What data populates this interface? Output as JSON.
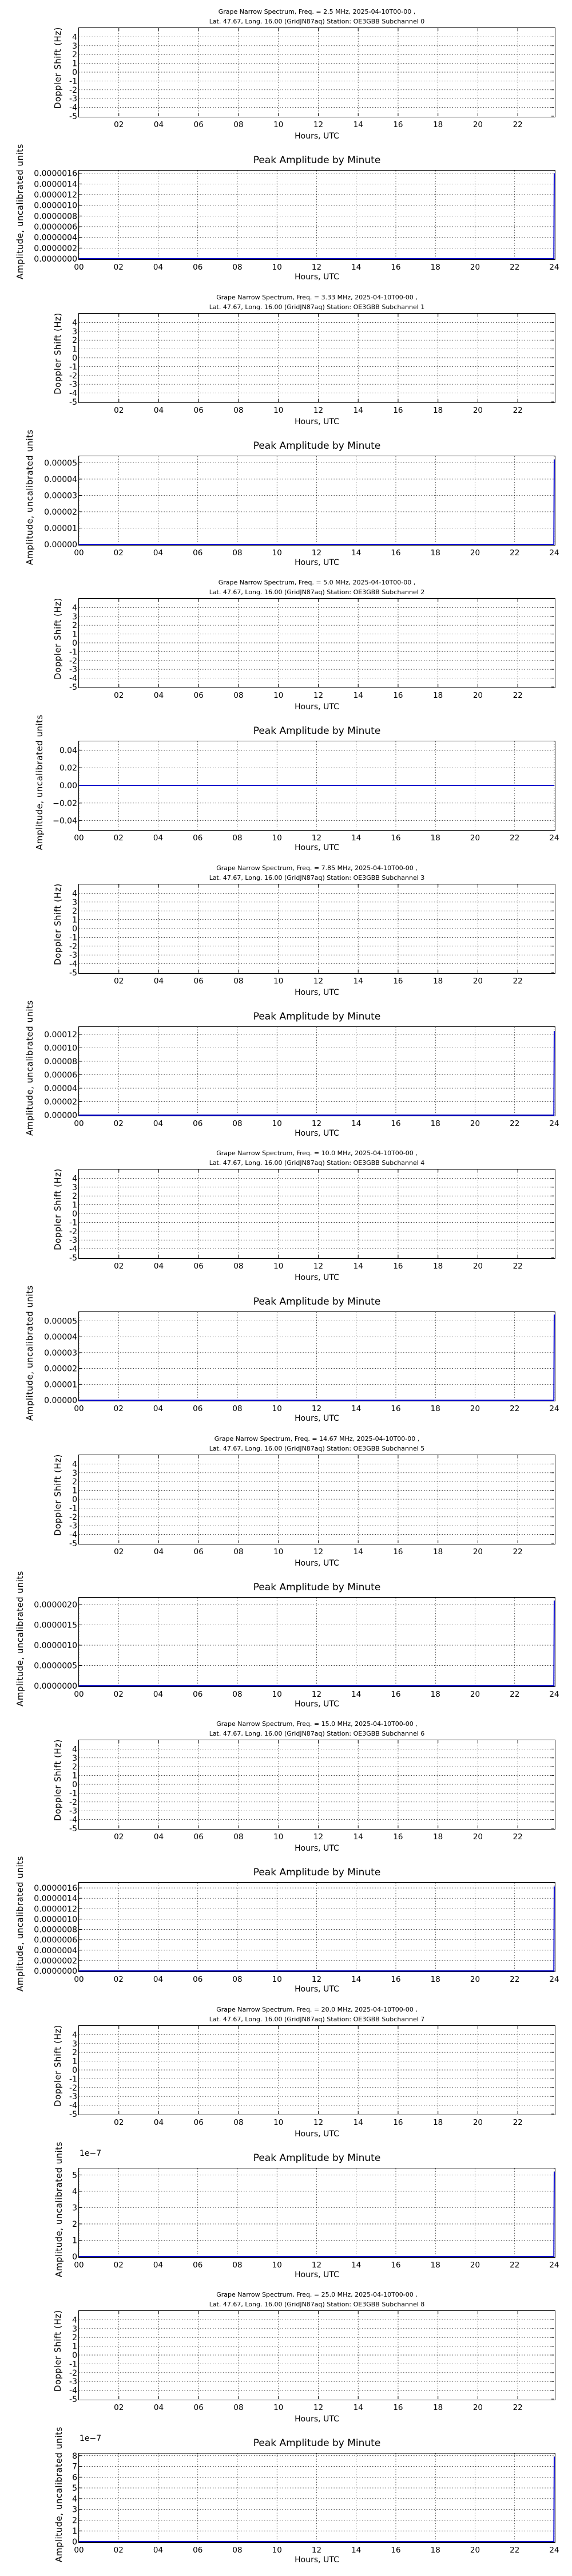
{
  "page": {
    "background": "#ffffff",
    "line_color": "#0000cc",
    "grid_color": "#000000"
  },
  "common": {
    "doppler_ylabel": "Doppler Shift (Hz)",
    "amp_ylabel": "Amplitude, uncalibrated units",
    "xlabel": "Hours, UTC",
    "amp_title": "Peak Amplitude by Minute",
    "doppler_yticks": [
      "4",
      "3",
      "2",
      "1",
      "0",
      "-1",
      "-2",
      "-3",
      "-4",
      "-5"
    ],
    "doppler_xticks": [
      "02",
      "04",
      "06",
      "08",
      "10",
      "12",
      "14",
      "16",
      "18",
      "20",
      "22"
    ],
    "amp_xticks": [
      "00",
      "02",
      "04",
      "06",
      "08",
      "10",
      "12",
      "14",
      "16",
      "18",
      "20",
      "22",
      "24"
    ]
  },
  "groups": [
    {
      "title1": "Grape Narrow Spectrum, Freq. = 2.5 MHz, 2025-04-10T00-00 ,",
      "title2": "Lat.  47.67, Long.  16.00 (GridJN87aq) Station: OE3GBB Subchannel 0",
      "offset": "",
      "amp_yticks": [
        "0.0000016",
        "0.0000014",
        "0.0000012",
        "0.0000010",
        "0.0000008",
        "0.0000006",
        "0.0000004",
        "0.0000002",
        "0.0000000"
      ]
    },
    {
      "title1": "Grape Narrow Spectrum, Freq. = 3.33 MHz, 2025-04-10T00-00 ,",
      "title2": "Lat.  47.67, Long.  16.00 (GridJN87aq) Station: OE3GBB Subchannel 1",
      "offset": "",
      "amp_yticks": [
        "0.00005",
        "0.00004",
        "0.00003",
        "0.00002",
        "0.00001",
        "0.00000"
      ]
    },
    {
      "title1": "Grape Narrow Spectrum, Freq. = 5.0 MHz, 2025-04-10T00-00 ,",
      "title2": "Lat.  47.67, Long.  16.00 (GridJN87aq) Station: OE3GBB Subchannel 2",
      "offset": "",
      "amp_yticks": [
        "0.04",
        "0.02",
        "0.00",
        "−0.02",
        "−0.04"
      ]
    },
    {
      "title1": "Grape Narrow Spectrum, Freq. = 7.85 MHz, 2025-04-10T00-00 ,",
      "title2": "Lat.  47.67, Long.  16.00 (GridJN87aq) Station: OE3GBB Subchannel 3",
      "offset": "",
      "amp_yticks": [
        "0.00012",
        "0.00010",
        "0.00008",
        "0.00006",
        "0.00004",
        "0.00002",
        "0.00000"
      ]
    },
    {
      "title1": "Grape Narrow Spectrum, Freq. = 10.0 MHz, 2025-04-10T00-00 ,",
      "title2": "Lat.  47.67, Long.  16.00 (GridJN87aq) Station: OE3GBB Subchannel 4",
      "offset": "",
      "amp_yticks": [
        "0.00005",
        "0.00004",
        "0.00003",
        "0.00002",
        "0.00001",
        "0.00000"
      ]
    },
    {
      "title1": "Grape Narrow Spectrum, Freq. = 14.67 MHz, 2025-04-10T00-00 ,",
      "title2": "Lat.  47.67, Long.  16.00 (GridJN87aq) Station: OE3GBB Subchannel 5",
      "offset": "",
      "amp_yticks": [
        "0.0000020",
        "0.0000015",
        "0.0000010",
        "0.0000005",
        "0.0000000"
      ]
    },
    {
      "title1": "Grape Narrow Spectrum, Freq. = 15.0 MHz, 2025-04-10T00-00 ,",
      "title2": "Lat.  47.67, Long.  16.00 (GridJN87aq) Station: OE3GBB Subchannel 6",
      "offset": "",
      "amp_yticks": [
        "0.0000016",
        "0.0000014",
        "0.0000012",
        "0.0000010",
        "0.0000008",
        "0.0000006",
        "0.0000004",
        "0.0000002",
        "0.0000000"
      ]
    },
    {
      "title1": "Grape Narrow Spectrum, Freq. = 20.0 MHz, 2025-04-10T00-00 ,",
      "title2": "Lat.  47.67, Long.  16.00 (GridJN87aq) Station: OE3GBB Subchannel 7",
      "offset": "1e−7",
      "amp_yticks": [
        "5",
        "4",
        "3",
        "2",
        "1",
        "0"
      ]
    },
    {
      "title1": "Grape Narrow Spectrum, Freq. = 25.0 MHz, 2025-04-10T00-00 ,",
      "title2": "Lat.  47.67, Long.  16.00 (GridJN87aq) Station: OE3GBB Subchannel 8",
      "offset": "1e−7",
      "amp_yticks": [
        "8",
        "7",
        "6",
        "5",
        "4",
        "3",
        "2",
        "1",
        "0"
      ]
    }
  ],
  "chart_data": [
    {
      "type": "line",
      "title": "Grape Narrow Spectrum, Freq. = 2.5 MHz, 2025-04-10T00-00 , Lat. 47.67, Long. 16.00 (GridJN87aq) Station: OE3GBB Subchannel 0",
      "xlabel": "Hours, UTC",
      "ylabel": "Doppler Shift (Hz)",
      "xlim": [
        0,
        23.83
      ],
      "ylim": [
        -5,
        5
      ],
      "grid": true,
      "series": []
    },
    {
      "type": "line",
      "title": "Peak Amplitude by Minute",
      "xlabel": "Hours, UTC",
      "ylabel": "Amplitude, uncalibrated units",
      "xlim": [
        0,
        24
      ],
      "ylim": [
        0,
        1.65e-06
      ],
      "grid": true,
      "series": [
        {
          "name": "peak amplitude",
          "x": [
            0,
            23.98,
            24
          ],
          "y": [
            0,
            0,
            1.6e-06
          ]
        }
      ]
    },
    {
      "type": "line",
      "title": "Grape Narrow Spectrum, Freq. = 3.33 MHz, 2025-04-10T00-00 , Lat. 47.67, Long. 16.00 (GridJN87aq) Station: OE3GBB Subchannel 1",
      "xlabel": "Hours, UTC",
      "ylabel": "Doppler Shift (Hz)",
      "xlim": [
        0,
        23.83
      ],
      "ylim": [
        -5,
        5
      ],
      "grid": true,
      "series": []
    },
    {
      "type": "line",
      "title": "Peak Amplitude by Minute",
      "xlabel": "Hours, UTC",
      "ylabel": "Amplitude, uncalibrated units",
      "xlim": [
        0,
        24
      ],
      "ylim": [
        0,
        5.4e-05
      ],
      "grid": true,
      "series": [
        {
          "name": "peak amplitude",
          "x": [
            0,
            23.98,
            24
          ],
          "y": [
            0,
            0,
            5.2e-05
          ]
        }
      ]
    },
    {
      "type": "line",
      "title": "Grape Narrow Spectrum, Freq. = 5.0 MHz, 2025-04-10T00-00 , Lat. 47.67, Long. 16.00 (GridJN87aq) Station: OE3GBB Subchannel 2",
      "xlabel": "Hours, UTC",
      "ylabel": "Doppler Shift (Hz)",
      "xlim": [
        0,
        23.83
      ],
      "ylim": [
        -5,
        5
      ],
      "grid": true,
      "series": []
    },
    {
      "type": "line",
      "title": "Peak Amplitude by Minute",
      "xlabel": "Hours, UTC",
      "ylabel": "Amplitude, uncalibrated units",
      "xlim": [
        0,
        24
      ],
      "ylim": [
        -0.05,
        0.05
      ],
      "grid": true,
      "series": [
        {
          "name": "peak amplitude",
          "x": [
            0,
            24
          ],
          "y": [
            0,
            0
          ]
        }
      ]
    },
    {
      "type": "line",
      "title": "Grape Narrow Spectrum, Freq. = 7.85 MHz, 2025-04-10T00-00 , Lat. 47.67, Long. 16.00 (GridJN87aq) Station: OE3GBB Subchannel 3",
      "xlabel": "Hours, UTC",
      "ylabel": "Doppler Shift (Hz)",
      "xlim": [
        0,
        23.83
      ],
      "ylim": [
        -5,
        5
      ],
      "grid": true,
      "series": []
    },
    {
      "type": "line",
      "title": "Peak Amplitude by Minute",
      "xlabel": "Hours, UTC",
      "ylabel": "Amplitude, uncalibrated units",
      "xlim": [
        0,
        24
      ],
      "ylim": [
        0,
        0.000131
      ],
      "grid": true,
      "series": [
        {
          "name": "peak amplitude",
          "x": [
            0,
            23.98,
            24
          ],
          "y": [
            0,
            0,
            0.000125
          ]
        }
      ]
    },
    {
      "type": "line",
      "title": "Grape Narrow Spectrum, Freq. = 10.0 MHz, 2025-04-10T00-00 , Lat. 47.67, Long. 16.00 (GridJN87aq) Station: OE3GBB Subchannel 4",
      "xlabel": "Hours, UTC",
      "ylabel": "Doppler Shift (Hz)",
      "xlim": [
        0,
        23.83
      ],
      "ylim": [
        -5,
        5
      ],
      "grid": true,
      "series": []
    },
    {
      "type": "line",
      "title": "Peak Amplitude by Minute",
      "xlabel": "Hours, UTC",
      "ylabel": "Amplitude, uncalibrated units",
      "xlim": [
        0,
        24
      ],
      "ylim": [
        0,
        5.56e-05
      ],
      "grid": true,
      "series": [
        {
          "name": "peak amplitude",
          "x": [
            0,
            23.98,
            24
          ],
          "y": [
            0,
            0,
            5.4e-05
          ]
        }
      ]
    },
    {
      "type": "line",
      "title": "Grape Narrow Spectrum, Freq. = 14.67 MHz, 2025-04-10T00-00 , Lat. 47.67, Long. 16.00 (GridJN87aq) Station: OE3GBB Subchannel 5",
      "xlabel": "Hours, UTC",
      "ylabel": "Doppler Shift (Hz)",
      "xlim": [
        0,
        23.83
      ],
      "ylim": [
        -5,
        5
      ],
      "grid": true,
      "series": []
    },
    {
      "type": "line",
      "title": "Peak Amplitude by Minute",
      "xlabel": "Hours, UTC",
      "ylabel": "Amplitude, uncalibrated units",
      "xlim": [
        0,
        24
      ],
      "ylim": [
        0,
        2.17e-06
      ],
      "grid": true,
      "series": [
        {
          "name": "peak amplitude",
          "x": [
            0,
            23.98,
            24
          ],
          "y": [
            0,
            0,
            2.1e-06
          ]
        }
      ]
    },
    {
      "type": "line",
      "title": "Grape Narrow Spectrum, Freq. = 15.0 MHz, 2025-04-10T00-00 , Lat. 47.67, Long. 16.00 (GridJN87aq) Station: OE3GBB Subchannel 6",
      "xlabel": "Hours, UTC",
      "ylabel": "Doppler Shift (Hz)",
      "xlim": [
        0,
        23.83
      ],
      "ylim": [
        -5,
        5
      ],
      "grid": true,
      "series": []
    },
    {
      "type": "line",
      "title": "Peak Amplitude by Minute",
      "xlabel": "Hours, UTC",
      "ylabel": "Amplitude, uncalibrated units",
      "xlim": [
        0,
        24
      ],
      "ylim": [
        0,
        1.7e-06
      ],
      "grid": true,
      "series": [
        {
          "name": "peak amplitude",
          "x": [
            0,
            23.98,
            24
          ],
          "y": [
            0,
            0,
            1.63e-06
          ]
        }
      ]
    },
    {
      "type": "line",
      "title": "Grape Narrow Spectrum, Freq. = 20.0 MHz, 2025-04-10T00-00 , Lat. 47.67, Long. 16.00 (GridJN87aq) Station: OE3GBB Subchannel 7",
      "xlabel": "Hours, UTC",
      "ylabel": "Doppler Shift (Hz)",
      "xlim": [
        0,
        23.83
      ],
      "ylim": [
        -5,
        5
      ],
      "grid": true,
      "series": []
    },
    {
      "type": "line",
      "title": "Peak Amplitude by Minute",
      "xlabel": "Hours, UTC",
      "ylabel": "Amplitude, uncalibrated units",
      "y_offset_label": "1e-7",
      "xlim": [
        0,
        24
      ],
      "ylim": [
        0,
        5.4e-07
      ],
      "grid": true,
      "series": [
        {
          "name": "peak amplitude",
          "x": [
            0,
            23.98,
            24
          ],
          "y": [
            0,
            0,
            5.2e-07
          ]
        }
      ]
    },
    {
      "type": "line",
      "title": "Grape Narrow Spectrum, Freq. = 25.0 MHz, 2025-04-10T00-00 , Lat. 47.67, Long. 16.00 (GridJN87aq) Station: OE3GBB Subchannel 8",
      "xlabel": "Hours, UTC",
      "ylabel": "Doppler Shift (Hz)",
      "xlim": [
        0,
        23.83
      ],
      "ylim": [
        -5,
        5
      ],
      "grid": true,
      "series": []
    },
    {
      "type": "line",
      "title": "Peak Amplitude by Minute",
      "xlabel": "Hours, UTC",
      "ylabel": "Amplitude, uncalibrated units",
      "y_offset_label": "1e-7",
      "xlim": [
        0,
        24
      ],
      "ylim": [
        0,
        8.2e-07
      ],
      "grid": true,
      "series": [
        {
          "name": "peak amplitude",
          "x": [
            0,
            23.98,
            24
          ],
          "y": [
            0,
            0,
            7.9e-07
          ]
        }
      ]
    }
  ]
}
